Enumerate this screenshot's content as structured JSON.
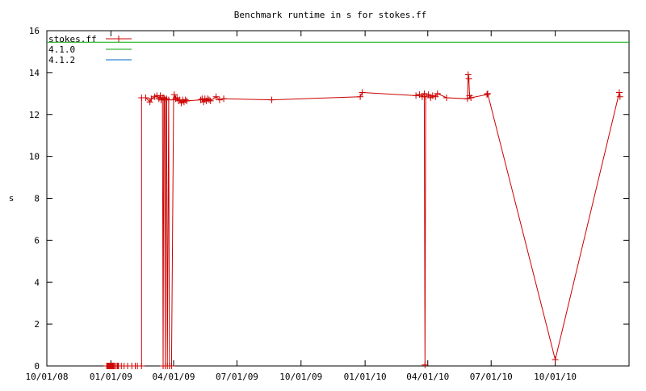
{
  "chart_data": {
    "type": "line",
    "title": "Benchmark runtime in s for stokes.ff",
    "xlabel": "",
    "ylabel": "s",
    "x_is_date": true,
    "xlim": [
      "2008-10-01",
      "2011-01-15"
    ],
    "ylim": [
      0,
      16
    ],
    "x_ticks": [
      "2008-10-01",
      "2009-01-01",
      "2009-04-01",
      "2009-07-01",
      "2009-10-01",
      "2010-01-01",
      "2010-04-01",
      "2010-07-01",
      "2010-10-01"
    ],
    "x_tick_labels": [
      "10/01/08",
      "01/01/09",
      "04/01/09",
      "07/01/09",
      "10/01/09",
      "01/01/10",
      "04/01/10",
      "07/01/10",
      "10/01/10"
    ],
    "y_ticks": [
      0,
      2,
      4,
      6,
      8,
      10,
      12,
      14,
      16
    ],
    "y_tick_labels": [
      "0",
      "2",
      "4",
      "6",
      "8",
      "10",
      "12",
      "14",
      "16"
    ],
    "grid": false,
    "legend_position": "top-left",
    "series": [
      {
        "name": "stokes.ff",
        "color": "#cc0000",
        "marker": "plus",
        "points": [
          [
            "2008-12-26",
            0
          ],
          [
            "2008-12-27",
            0
          ],
          [
            "2008-12-28",
            0
          ],
          [
            "2008-12-29",
            0
          ],
          [
            "2008-12-30",
            0
          ],
          [
            "2008-12-31",
            0
          ],
          [
            "2009-01-01",
            0
          ],
          [
            "2009-01-02",
            0
          ],
          [
            "2009-01-03",
            0
          ],
          [
            "2009-01-04",
            0
          ],
          [
            "2009-01-05",
            0
          ],
          [
            "2009-01-06",
            0
          ],
          [
            "2009-01-08",
            0
          ],
          [
            "2009-01-10",
            0
          ],
          [
            "2009-01-11",
            0
          ],
          [
            "2009-01-12",
            0
          ],
          [
            "2009-01-16",
            0
          ],
          [
            "2009-01-20",
            0
          ],
          [
            "2009-01-25",
            0
          ],
          [
            "2009-01-31",
            0
          ],
          [
            "2009-02-05",
            0
          ],
          [
            "2009-02-08",
            0
          ],
          [
            "2009-02-14",
            0
          ],
          [
            "2009-02-14",
            12.8
          ],
          [
            "2009-02-20",
            12.8
          ],
          [
            "2009-02-26",
            12.6
          ],
          [
            "2009-02-28",
            12.75
          ],
          [
            "2009-03-05",
            12.85
          ],
          [
            "2009-03-08",
            12.9
          ],
          [
            "2009-03-11",
            12.75
          ],
          [
            "2009-03-13",
            12.9
          ],
          [
            "2009-03-14",
            12.7
          ],
          [
            "2009-03-16",
            12.8
          ],
          [
            "2009-03-17",
            0
          ],
          [
            "2009-03-18",
            12.8
          ],
          [
            "2009-03-19",
            12.75
          ],
          [
            "2009-03-20",
            0
          ],
          [
            "2009-03-21",
            12.7
          ],
          [
            "2009-03-22",
            12.75
          ],
          [
            "2009-03-23",
            0
          ],
          [
            "2009-03-25",
            12.7
          ],
          [
            "2009-03-26",
            0
          ],
          [
            "2009-03-29",
            0
          ],
          [
            "2009-04-01",
            12.7
          ],
          [
            "2009-04-02",
            12.95
          ],
          [
            "2009-04-04",
            12.75
          ],
          [
            "2009-04-06",
            12.8
          ],
          [
            "2009-04-08",
            12.65
          ],
          [
            "2009-04-10",
            12.7
          ],
          [
            "2009-04-12",
            12.55
          ],
          [
            "2009-04-14",
            12.7
          ],
          [
            "2009-04-16",
            12.6
          ],
          [
            "2009-04-18",
            12.7
          ],
          [
            "2009-04-20",
            12.65
          ],
          [
            "2009-05-10",
            12.7
          ],
          [
            "2009-05-12",
            12.75
          ],
          [
            "2009-05-14",
            12.6
          ],
          [
            "2009-05-16",
            12.75
          ],
          [
            "2009-05-18",
            12.65
          ],
          [
            "2009-05-20",
            12.75
          ],
          [
            "2009-05-22",
            12.7
          ],
          [
            "2009-05-24",
            12.65
          ],
          [
            "2009-06-01",
            12.85
          ],
          [
            "2009-06-06",
            12.7
          ],
          [
            "2009-06-12",
            12.75
          ],
          [
            "2009-08-20",
            12.7
          ],
          [
            "2009-12-25",
            12.85
          ],
          [
            "2009-12-28",
            13.05
          ],
          [
            "2010-03-15",
            12.9
          ],
          [
            "2010-03-20",
            12.95
          ],
          [
            "2010-03-24",
            12.85
          ],
          [
            "2010-03-27",
            13.0
          ],
          [
            "2010-03-28",
            0.05
          ],
          [
            "2010-03-29",
            12.85
          ],
          [
            "2010-04-02",
            12.95
          ],
          [
            "2010-04-05",
            12.8
          ],
          [
            "2010-04-08",
            12.9
          ],
          [
            "2010-04-12",
            12.85
          ],
          [
            "2010-04-15",
            13.0
          ],
          [
            "2010-04-28",
            12.8
          ],
          [
            "2010-05-28",
            12.75
          ],
          [
            "2010-05-29",
            13.9
          ],
          [
            "2010-05-30",
            13.7
          ],
          [
            "2010-05-31",
            12.9
          ],
          [
            "2010-06-02",
            12.8
          ],
          [
            "2010-06-25",
            12.95
          ],
          [
            "2010-06-26",
            13.0
          ],
          [
            "2010-10-01",
            0.3
          ],
          [
            "2011-01-01",
            13.05
          ],
          [
            "2011-01-02",
            12.85
          ]
        ]
      },
      {
        "name": "4.1.0",
        "color": "#00aa00",
        "marker": "none",
        "points": [
          [
            "2008-10-01",
            15.45
          ],
          [
            "2011-01-15",
            15.45
          ]
        ]
      },
      {
        "name": "4.1.2",
        "color": "#0066cc",
        "marker": "none",
        "points": []
      }
    ]
  }
}
